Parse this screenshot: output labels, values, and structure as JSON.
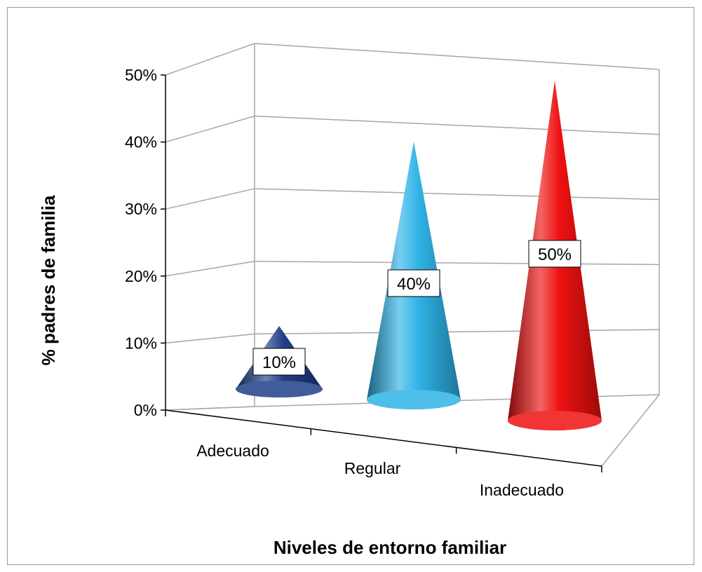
{
  "chart_data": {
    "type": "bar",
    "style": "3d-cone",
    "categories": [
      "Adecuado",
      "Regular",
      "Inadecuado"
    ],
    "values": [
      10,
      40,
      50
    ],
    "data_labels": [
      "10%",
      "40%",
      "50%"
    ],
    "colors": [
      "#1f3f88",
      "#2fb3e6",
      "#ee1111"
    ],
    "xlabel": "Niveles de entorno familiar",
    "ylabel": "%  padres de familia",
    "ylim": [
      0,
      50
    ],
    "yticks": [
      "0%",
      "10%",
      "20%",
      "30%",
      "40%",
      "50%"
    ],
    "grid": true,
    "legend": "none"
  }
}
